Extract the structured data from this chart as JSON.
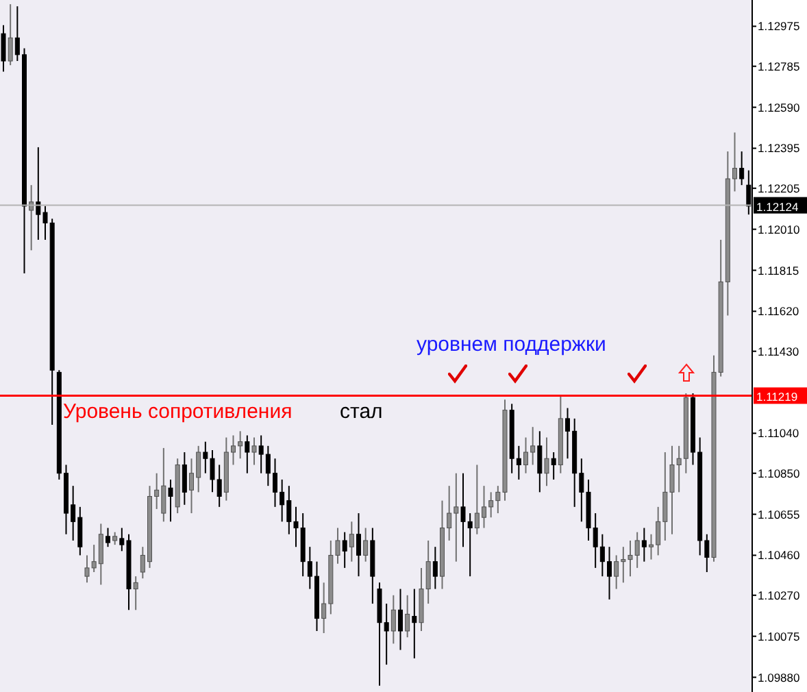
{
  "chart_data": {
    "type": "candlestick",
    "categories": [
      null,
      null,
      null,
      null,
      null,
      null,
      null,
      null,
      null,
      null,
      null,
      null,
      null,
      null,
      null,
      null,
      null,
      null,
      null,
      null,
      null,
      null,
      null,
      null,
      null,
      null,
      null,
      null,
      null,
      null,
      null,
      null,
      null,
      null,
      null,
      null,
      null,
      null,
      null,
      null,
      null,
      null,
      null,
      null,
      null,
      null,
      null,
      null,
      null,
      null,
      null,
      null,
      null,
      null,
      null,
      null,
      null,
      null,
      null,
      null,
      null,
      null,
      null,
      null,
      null,
      null,
      null,
      null,
      null,
      null,
      null,
      null,
      null,
      null,
      null,
      null,
      null,
      null,
      null,
      null,
      null,
      null,
      null,
      null,
      null,
      null,
      null,
      null,
      null,
      null,
      null,
      null,
      null,
      null,
      null,
      null,
      null,
      null,
      null,
      null,
      null,
      null,
      null,
      null,
      null,
      null,
      null,
      null
    ],
    "ohlc": [
      [
        1.1294,
        1.1298,
        1.1276,
        1.1281
      ],
      [
        1.1281,
        1.1308,
        1.1279,
        1.1292
      ],
      [
        1.1292,
        1.1307,
        1.1281,
        1.1284
      ],
      [
        1.1284,
        1.1287,
        1.118,
        1.1212
      ],
      [
        1.121,
        1.1222,
        1.1191,
        1.1214
      ],
      [
        1.1214,
        1.124,
        1.1196,
        1.1208
      ],
      [
        1.1209,
        1.1212,
        1.1196,
        1.1204
      ],
      [
        1.1204,
        1.1206,
        1.1108,
        1.1134
      ],
      [
        1.1133,
        1.1134,
        1.1082,
        1.1085
      ],
      [
        1.1085,
        1.1089,
        1.1056,
        1.1066
      ],
      [
        1.107,
        1.1079,
        1.1053,
        1.1062
      ],
      [
        1.1064,
        1.1069,
        1.1046,
        1.105
      ],
      [
        1.1036,
        1.1046,
        1.1033,
        1.104
      ],
      [
        1.104,
        1.1051,
        1.1038,
        1.1043
      ],
      [
        1.1042,
        1.1061,
        1.1032,
        1.1056
      ],
      [
        1.1055,
        1.1059,
        1.105,
        1.1052
      ],
      [
        1.1053,
        1.1057,
        1.1051,
        1.1055
      ],
      [
        1.1054,
        1.1059,
        1.1048,
        1.1051
      ],
      [
        1.1053,
        1.1056,
        1.102,
        1.103
      ],
      [
        1.103,
        1.1036,
        1.102,
        1.1033
      ],
      [
        1.1038,
        1.105,
        1.1035,
        1.1046
      ],
      [
        1.1043,
        1.1079,
        1.104,
        1.1074
      ],
      [
        1.1074,
        1.1085,
        1.1068,
        1.1077
      ],
      [
        1.1066,
        1.1097,
        1.1062,
        1.1079
      ],
      [
        1.1078,
        1.1082,
        1.1062,
        1.1074
      ],
      [
        1.1069,
        1.1092,
        1.1066,
        1.1089
      ],
      [
        1.1089,
        1.1095,
        1.107,
        1.1076
      ],
      [
        1.1077,
        1.1092,
        1.1066,
        1.1085
      ],
      [
        1.1083,
        1.1098,
        1.1076,
        1.1095
      ],
      [
        1.1095,
        1.11,
        1.1085,
        1.1092
      ],
      [
        1.1092,
        1.1096,
        1.1076,
        1.1082
      ],
      [
        1.1082,
        1.1089,
        1.1069,
        1.1074
      ],
      [
        1.1076,
        1.1102,
        1.1072,
        1.1095
      ],
      [
        1.1095,
        1.1103,
        1.1089,
        1.1098
      ],
      [
        1.1098,
        1.1105,
        1.1092,
        1.11
      ],
      [
        1.11,
        1.1103,
        1.1085,
        1.1095
      ],
      [
        1.1095,
        1.1102,
        1.1089,
        1.1098
      ],
      [
        1.1098,
        1.1103,
        1.1085,
        1.1094
      ],
      [
        1.1094,
        1.1098,
        1.1079,
        1.1085
      ],
      [
        1.1085,
        1.1092,
        1.1069,
        1.1076
      ],
      [
        1.1076,
        1.1082,
        1.1062,
        1.107
      ],
      [
        1.1072,
        1.1079,
        1.1056,
        1.1062
      ],
      [
        1.1062,
        1.1069,
        1.105,
        1.1059
      ],
      [
        1.1059,
        1.1066,
        1.1036,
        1.1043
      ],
      [
        1.1043,
        1.105,
        1.103,
        1.1036
      ],
      [
        1.1036,
        1.1043,
        1.101,
        1.1016
      ],
      [
        1.1016,
        1.1033,
        1.1009,
        1.1023
      ],
      [
        1.1023,
        1.1053,
        1.1018,
        1.1046
      ],
      [
        1.1046,
        1.1059,
        1.1042,
        1.1053
      ],
      [
        1.1053,
        1.1057,
        1.104,
        1.1048
      ],
      [
        1.105,
        1.1062,
        1.1043,
        1.1056
      ],
      [
        1.1056,
        1.1066,
        1.1036,
        1.1046
      ],
      [
        1.1046,
        1.1059,
        1.1043,
        1.1053
      ],
      [
        1.1053,
        1.1059,
        1.1023,
        1.1036
      ],
      [
        1.103,
        1.1033,
        1.0984,
        1.1014
      ],
      [
        1.1014,
        1.1023,
        1.0994,
        1.101
      ],
      [
        1.101,
        1.1027,
        1.1004,
        1.102
      ],
      [
        1.102,
        1.103,
        1.1001,
        1.101
      ],
      [
        1.101,
        1.1027,
        1.1007,
        1.1018
      ],
      [
        1.1017,
        1.103,
        1.0997,
        1.1014
      ],
      [
        1.1014,
        1.104,
        1.101,
        1.103
      ],
      [
        1.103,
        1.1053,
        1.1023,
        1.1043
      ],
      [
        1.1043,
        1.105,
        1.103,
        1.1036
      ],
      [
        1.1036,
        1.1072,
        1.103,
        1.1059
      ],
      [
        1.1059,
        1.1079,
        1.1053,
        1.1066
      ],
      [
        1.1066,
        1.1085,
        1.1043,
        1.1069
      ],
      [
        1.1069,
        1.1085,
        1.105,
        1.1062
      ],
      [
        1.1062,
        1.1066,
        1.1036,
        1.1059
      ],
      [
        1.1059,
        1.1089,
        1.1056,
        1.1066
      ],
      [
        1.1064,
        1.1079,
        1.1059,
        1.1069
      ],
      [
        1.1069,
        1.1076,
        1.1064,
        1.1072
      ],
      [
        1.1072,
        1.1079,
        1.1066,
        1.1076
      ],
      [
        1.1076,
        1.112,
        1.1072,
        1.1115
      ],
      [
        1.1115,
        1.1118,
        1.1085,
        1.1092
      ],
      [
        1.1092,
        1.1098,
        1.1082,
        1.1089
      ],
      [
        1.1089,
        1.1102,
        1.1085,
        1.1095
      ],
      [
        1.1095,
        1.1107,
        1.1089,
        1.1098
      ],
      [
        1.1098,
        1.1105,
        1.1076,
        1.1085
      ],
      [
        1.1085,
        1.1102,
        1.1079,
        1.1092
      ],
      [
        1.1092,
        1.1095,
        1.1082,
        1.1089
      ],
      [
        1.1089,
        1.1122,
        1.1085,
        1.1111
      ],
      [
        1.1111,
        1.1116,
        1.1092,
        1.1105
      ],
      [
        1.1105,
        1.1111,
        1.1069,
        1.1085
      ],
      [
        1.1085,
        1.1092,
        1.1062,
        1.1076
      ],
      [
        1.1076,
        1.1082,
        1.1053,
        1.1059
      ],
      [
        1.1059,
        1.1066,
        1.104,
        1.105
      ],
      [
        1.105,
        1.1056,
        1.1036,
        1.1043
      ],
      [
        1.1043,
        1.105,
        1.1025,
        1.1036
      ],
      [
        1.1036,
        1.1046,
        1.103,
        1.1043
      ],
      [
        1.1043,
        1.105,
        1.1033,
        1.1044
      ],
      [
        1.1044,
        1.1053,
        1.1036,
        1.1046
      ],
      [
        1.1046,
        1.1057,
        1.104,
        1.1053
      ],
      [
        1.1053,
        1.1059,
        1.1043,
        1.105
      ],
      [
        1.105,
        1.1056,
        1.1044,
        1.1051
      ],
      [
        1.1051,
        1.1069,
        1.1046,
        1.1062
      ],
      [
        1.1062,
        1.1095,
        1.1053,
        1.1076
      ],
      [
        1.1076,
        1.1098,
        1.1056,
        1.1089
      ],
      [
        1.1089,
        1.1098,
        1.1076,
        1.1092
      ],
      [
        1.1092,
        1.1123,
        1.1085,
        1.1121
      ],
      [
        1.1121,
        1.1123,
        1.1089,
        1.1095
      ],
      [
        1.1095,
        1.1102,
        1.1046,
        1.1053
      ],
      [
        1.1053,
        1.1056,
        1.1038,
        1.1045
      ],
      [
        1.1045,
        1.1141,
        1.1043,
        1.1133
      ],
      [
        1.1133,
        1.1196,
        1.1131,
        1.1176
      ],
      [
        1.1176,
        1.1238,
        1.116,
        1.1225
      ],
      [
        1.1225,
        1.1247,
        1.1219,
        1.123
      ],
      [
        1.123,
        1.1238,
        1.1222,
        1.1225
      ],
      [
        1.1222,
        1.1229,
        1.1208,
        1.1212
      ]
    ],
    "ylim": [
      1.0981,
      1.131
    ],
    "yticks": [
      1.12975,
      1.12785,
      {
        "value": 1.1259,
        "label": "1.12590"
      },
      1.12395,
      1.12205,
      {
        "value": 1.1201,
        "label": "1.12010"
      },
      1.11815,
      {
        "value": 1.1162,
        "label": "1.11620"
      },
      {
        "value": 1.1143,
        "label": "1.11430"
      },
      {
        "value": 1.1104,
        "label": "1.11040"
      },
      {
        "value": 1.1085,
        "label": "1.10850"
      },
      1.10655,
      {
        "value": 1.1046,
        "label": "1.10460"
      },
      {
        "value": 1.1027,
        "label": "1.10270"
      },
      1.10075,
      {
        "value": 1.0988,
        "label": "1.09880"
      }
    ],
    "tick_labels": "y",
    "ref_lines": [
      {
        "axis": "y",
        "value": 1.11219,
        "label": "1.11219",
        "color": "#ff0000"
      },
      {
        "axis": "y",
        "value": 1.12124,
        "label": "1.12124",
        "color": "#b4b4b4"
      }
    ],
    "annotations": [
      "Уровень сопротивления",
      "стал",
      "уровнем поддержки"
    ]
  }
}
